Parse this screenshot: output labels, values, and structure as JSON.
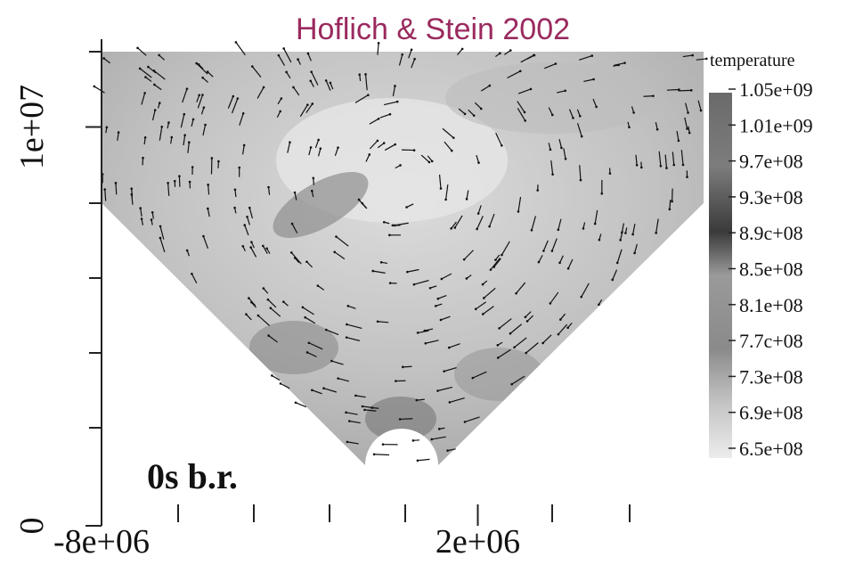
{
  "chart_data": {
    "type": "field",
    "title": "Hoflich & Stein 2002",
    "annotation": "0s b.r.",
    "xlim": [
      -8000000,
      8000000
    ],
    "ylim": [
      0,
      12000000
    ],
    "xticks": [
      {
        "value": -8000000,
        "label": "-8e+06"
      },
      {
        "value": 2000000,
        "label": "2e+06"
      }
    ],
    "yticks": [
      0,
      {
        "value": 10000000,
        "label": "1e+07"
      }
    ],
    "colorbar": {
      "title": "temperature",
      "ticks": [
        {
          "value": 1050000000,
          "label": "1.05e+09"
        },
        {
          "value": 1010000000,
          "label": "1.01e+09"
        },
        {
          "value": 970000000,
          "label": "9.7e+08"
        },
        {
          "value": 930000000,
          "label": "9.3e+08"
        },
        {
          "value": 890000000,
          "label": "8.9c+08"
        },
        {
          "value": 850000000,
          "label": "8.5e+08"
        },
        {
          "value": 810000000,
          "label": "8.1e+08"
        },
        {
          "value": 770000000,
          "label": "7.7c+08"
        },
        {
          "value": 730000000,
          "label": "7.3e+08"
        },
        {
          "value": 690000000,
          "label": "6.9e+08"
        },
        {
          "value": 650000000,
          "label": "6.5e+08"
        }
      ]
    }
  }
}
